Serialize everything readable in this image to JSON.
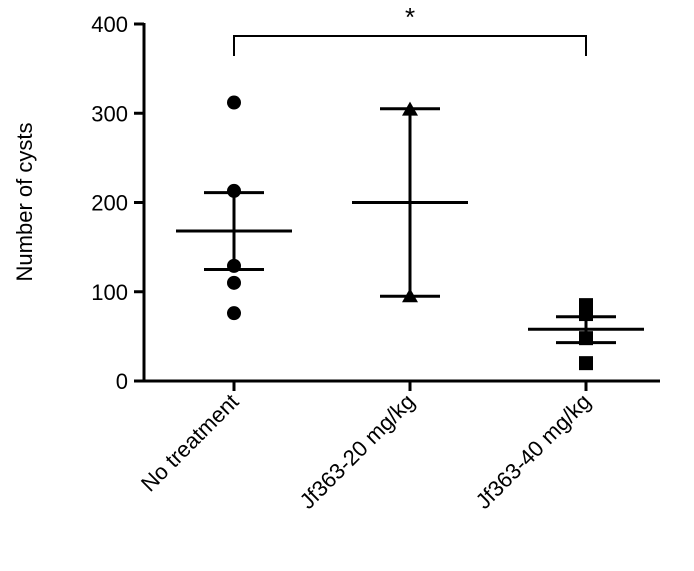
{
  "chart_data": {
    "type": "scatter",
    "title": "",
    "ylabel": "Number of cysts",
    "xlabel": "",
    "ylim": [
      0,
      400
    ],
    "yticks": [
      0,
      100,
      200,
      300,
      400
    ],
    "categories": [
      "No treatment",
      "Jf363-20 mg/kg",
      "Jf363-40 mg/kg"
    ],
    "groups": [
      {
        "category": "No treatment",
        "marker": "circle",
        "points": [
          312,
          213,
          129,
          110,
          76
        ],
        "mean": 168,
        "sem_upper": 211,
        "sem_lower": 125
      },
      {
        "category": "Jf363-20 mg/kg",
        "marker": "triangle",
        "points": [
          304,
          95
        ],
        "mean": 200,
        "sem_upper": 305,
        "sem_lower": 95
      },
      {
        "category": "Jf363-40 mg/kg",
        "marker": "square",
        "points": [
          85,
          75,
          48,
          20
        ],
        "mean": 58,
        "sem_upper": 72,
        "sem_lower": 43
      }
    ],
    "significance": {
      "from": "No treatment",
      "to": "Jf363-40 mg/kg",
      "label": "*"
    },
    "grid": false,
    "color": "#000000"
  }
}
